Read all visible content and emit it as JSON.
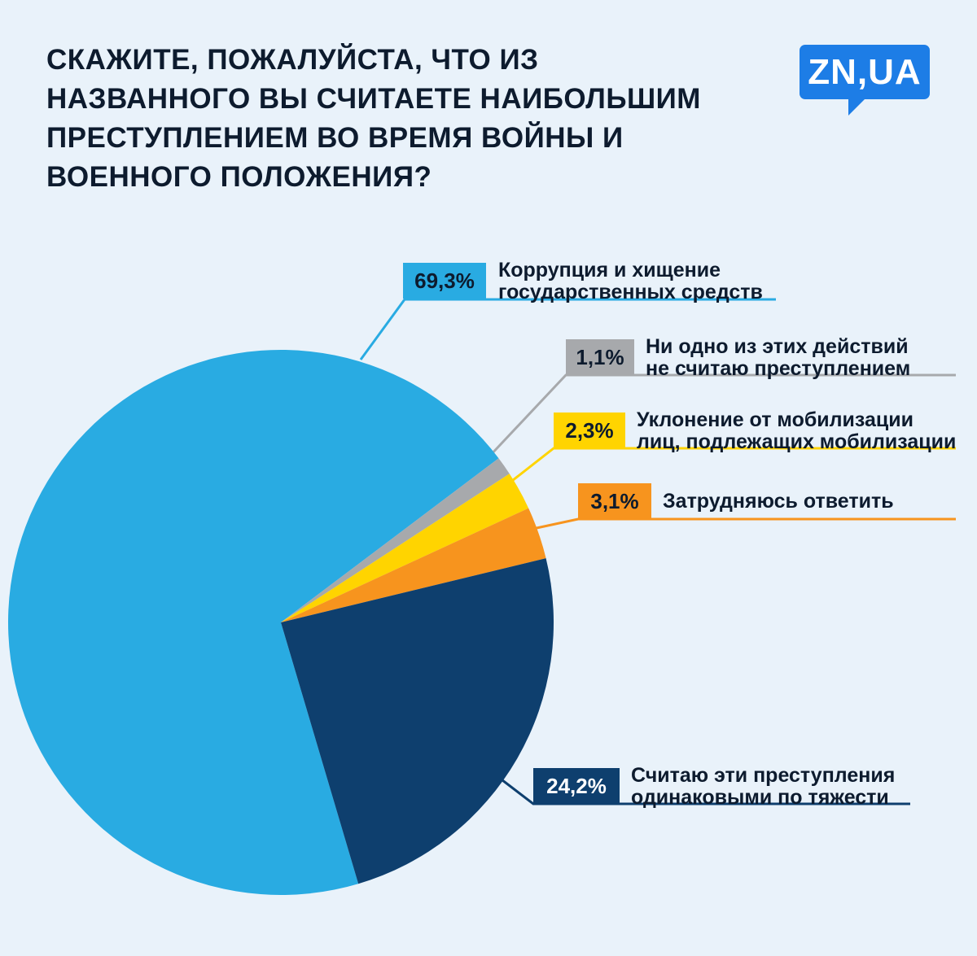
{
  "page": {
    "background_color": "#e9f2fa"
  },
  "header": {
    "title_lines": [
      "СКАЖИТЕ, ПОЖАЛУЙСТА, ЧТО ИЗ",
      "НАЗВАННОГО ВЫ СЧИТАЕТЕ НАИБОЛЬШИМ",
      "ПРЕСТУПЛЕНИЕМ ВО ВРЕМЯ ВОЙНЫ И",
      "ВОЕННОГО ПОЛОЖЕНИЯ?"
    ],
    "logo_text": "ZN,UA",
    "logo_color": "#1d7de6"
  },
  "chart_data": {
    "type": "pie",
    "title": "Скажите, пожалуйста, что из названного вы считаете наибольшим преступлением во время войны и военного положения?",
    "start_angle_deg": 163.5,
    "clockwise": true,
    "grid": false,
    "legend_position": "right-callouts",
    "slices": [
      {
        "label": "Коррупция и хищение государственных средств",
        "value": 69.3,
        "pct_label": "69,3%",
        "color": "#29abe2"
      },
      {
        "label": "Ни одно из этих действий не считаю преступлением",
        "value": 1.1,
        "pct_label": "1,1%",
        "color": "#a7a9ac"
      },
      {
        "label": "Уклонение от мобилизации лиц, подлежащих мобилизации",
        "value": 2.3,
        "pct_label": "2,3%",
        "color": "#ffd400"
      },
      {
        "label": "Затрудняюсь ответить",
        "value": 3.1,
        "pct_label": "3,1%",
        "color": "#f7941e"
      },
      {
        "label": "Считаю эти преступления одинаковыми по тяжести",
        "value": 24.2,
        "pct_label": "24,2%",
        "color": "#0e3f6e"
      }
    ]
  },
  "callouts": [
    {
      "pct": "69,3%",
      "lines": [
        "Коррупция и хищение",
        "государственных средств"
      ],
      "color": "#29abe2",
      "text_color": "#0d1b2e"
    },
    {
      "pct": "1,1%",
      "lines": [
        "Ни одно из этих действий",
        "не считаю преступлением"
      ],
      "color": "#a7a9ac",
      "text_color": "#0d1b2e"
    },
    {
      "pct": "2,3%",
      "lines": [
        "Уклонение от мобилизации",
        "лиц, подлежащих мобилизации"
      ],
      "color": "#ffd400",
      "text_color": "#0d1b2e"
    },
    {
      "pct": "3,1%",
      "lines": [
        "Затрудняюсь ответить",
        ""
      ],
      "color": "#f7941e",
      "text_color": "#0d1b2e"
    },
    {
      "pct": "24,2%",
      "lines": [
        "Считаю эти преступления",
        "одинаковыми по тяжести"
      ],
      "color": "#0e3f6e",
      "text_color": "#ffffff"
    }
  ]
}
